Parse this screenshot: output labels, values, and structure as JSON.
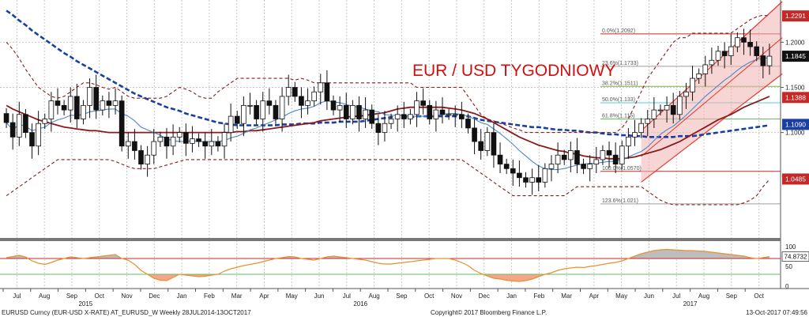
{
  "chart_data": {
    "type": "candlestick",
    "title": "EUR / USD TYGODNIOWY",
    "title_color": "#d01010",
    "ylim": [
      0.985,
      1.245
    ],
    "y_ticks": [
      "1.2000",
      "1.1500",
      "1.1000"
    ],
    "y_tick_values": [
      1.2,
      1.15,
      1.1
    ],
    "price_tags": [
      {
        "label": "1.2291",
        "value": 1.2291,
        "color": "#c62828"
      },
      {
        "label": "1.1845",
        "value": 1.1845,
        "color": "#111111"
      },
      {
        "label": "1.1388",
        "value": 1.1388,
        "color": "#c62828"
      },
      {
        "label": "1.1090",
        "value": 1.109,
        "color": "#1a3fa0"
      },
      {
        "label": "1.0485",
        "value": 1.0485,
        "color": "#c62828"
      }
    ],
    "fib_levels": [
      {
        "label": "0.0%(1.2092)",
        "value": 1.2092,
        "color": "#c62828"
      },
      {
        "label": "23.6%(1.1733)",
        "value": 1.1733,
        "color": "#9e9e9e"
      },
      {
        "label": "38.2%(1.1511)",
        "value": 1.1511,
        "color": "#7cb342"
      },
      {
        "label": "50.0%(1.133)",
        "value": 1.133,
        "color": "#4dd0e1"
      },
      {
        "label": "61.8%(1.115)",
        "value": 1.115,
        "color": "#66bb6a"
      },
      {
        "label": "100.0%(1.0570)",
        "value": 1.057,
        "color": "#c62828"
      },
      {
        "label": "123.6%(1.021)",
        "value": 1.021,
        "color": "#9e9e9e"
      }
    ],
    "x_tick_labels": [
      "Jul",
      "Aug",
      "Sep",
      "Oct",
      "Nov",
      "Dec",
      "Jan",
      "Feb",
      "Mar",
      "Apr",
      "May",
      "Jun",
      "Jul",
      "Aug",
      "Sep",
      "Oct",
      "Nov",
      "Dec",
      "Jan",
      "Feb",
      "Mar",
      "Apr",
      "May",
      "Jun",
      "Jul",
      "Aug",
      "Sep",
      "Oct"
    ],
    "year_labels": [
      {
        "label": "2015",
        "month_index": 2.5
      },
      {
        "label": "2016",
        "month_index": 12.5
      },
      {
        "label": "2017",
        "month_index": 24.5
      }
    ],
    "closes": [
      1.111,
      1.095,
      1.12,
      1.1,
      1.085,
      1.11,
      1.115,
      1.135,
      1.13,
      1.125,
      1.14,
      1.115,
      1.13,
      1.15,
      1.125,
      1.135,
      1.13,
      1.135,
      1.085,
      1.09,
      1.08,
      1.065,
      1.075,
      1.09,
      1.095,
      1.085,
      1.095,
      1.1,
      1.088,
      1.093,
      1.09,
      1.085,
      1.09,
      1.085,
      1.1,
      1.118,
      1.11,
      1.13,
      1.13,
      1.115,
      1.135,
      1.13,
      1.115,
      1.14,
      1.15,
      1.14,
      1.13,
      1.135,
      1.145,
      1.155,
      1.135,
      1.125,
      1.13,
      1.115,
      1.13,
      1.115,
      1.125,
      1.11,
      1.1,
      1.11,
      1.115,
      1.12,
      1.115,
      1.12,
      1.135,
      1.13,
      1.115,
      1.125,
      1.12,
      1.12,
      1.12,
      1.115,
      1.105,
      1.09,
      1.08,
      1.1,
      1.075,
      1.065,
      1.06,
      1.055,
      1.05,
      1.045,
      1.05,
      1.045,
      1.06,
      1.065,
      1.075,
      1.07,
      1.08,
      1.065,
      1.06,
      1.065,
      1.07,
      1.08,
      1.075,
      1.065,
      1.085,
      1.095,
      1.1,
      1.11,
      1.115,
      1.125,
      1.125,
      1.13,
      1.12,
      1.14,
      1.145,
      1.16,
      1.165,
      1.175,
      1.18,
      1.19,
      1.185,
      1.195,
      1.205,
      1.2,
      1.195,
      1.185,
      1.174,
      1.1845
    ],
    "series": [
      {
        "name": "SMA 200",
        "color": "#1a3fa0",
        "style": "dashed",
        "values": [
          1.235,
          1.23,
          1.224,
          1.219,
          1.213,
          1.208,
          1.203,
          1.198,
          1.193,
          1.188,
          1.184,
          1.179,
          1.175,
          1.171,
          1.167,
          1.163,
          1.159,
          1.155,
          1.151,
          1.147,
          1.143,
          1.14,
          1.137,
          1.134,
          1.131,
          1.128,
          1.126,
          1.124,
          1.121,
          1.119,
          1.117,
          1.115,
          1.113,
          1.111,
          1.11,
          1.109,
          1.108,
          1.108,
          1.108,
          1.108,
          1.108,
          1.108,
          1.108,
          1.109,
          1.109,
          1.109,
          1.11,
          1.11,
          1.11,
          1.111,
          1.111,
          1.111,
          1.112,
          1.112,
          1.112,
          1.112,
          1.113,
          1.114,
          1.115,
          1.116,
          1.117,
          1.117,
          1.117,
          1.117,
          1.118,
          1.118,
          1.118,
          1.118,
          1.118,
          1.118,
          1.118,
          1.118,
          1.118,
          1.116,
          1.114,
          1.113,
          1.112,
          1.111,
          1.11,
          1.109,
          1.108,
          1.107,
          1.106,
          1.106,
          1.105,
          1.104,
          1.103,
          1.103,
          1.102,
          1.102,
          1.101,
          1.1,
          1.1,
          1.099,
          1.098,
          1.098,
          1.097,
          1.097,
          1.096,
          1.096,
          1.095,
          1.095,
          1.095,
          1.095,
          1.095,
          1.096,
          1.096,
          1.096,
          1.097,
          1.098,
          1.099,
          1.1,
          1.101,
          1.102,
          1.103,
          1.104,
          1.105,
          1.106,
          1.107,
          1.108
        ]
      },
      {
        "name": "SMA 55",
        "color": "#8b1a1a",
        "style": "solid",
        "values": [
          1.13,
          1.126,
          1.123,
          1.12,
          1.117,
          1.114,
          1.112,
          1.11,
          1.108,
          1.106,
          1.105,
          1.104,
          1.103,
          1.102,
          1.102,
          1.101,
          1.1,
          1.1,
          1.1,
          1.1,
          1.1,
          1.1,
          1.1,
          1.1,
          1.1,
          1.1,
          1.1,
          1.1,
          1.1,
          1.1,
          1.1,
          1.1,
          1.1,
          1.1,
          1.1,
          1.1,
          1.101,
          1.101,
          1.102,
          1.102,
          1.103,
          1.104,
          1.105,
          1.106,
          1.107,
          1.108,
          1.109,
          1.11,
          1.111,
          1.113,
          1.114,
          1.115,
          1.116,
          1.117,
          1.118,
          1.118,
          1.119,
          1.12,
          1.121,
          1.122,
          1.124,
          1.126,
          1.127,
          1.128,
          1.128,
          1.128,
          1.128,
          1.128,
          1.128,
          1.127,
          1.126,
          1.125,
          1.123,
          1.121,
          1.118,
          1.115,
          1.111,
          1.107,
          1.103,
          1.099,
          1.095,
          1.092,
          1.089,
          1.086,
          1.084,
          1.082,
          1.08,
          1.079,
          1.077,
          1.076,
          1.074,
          1.073,
          1.072,
          1.072,
          1.071,
          1.071,
          1.071,
          1.072,
          1.073,
          1.075,
          1.077,
          1.079,
          1.081,
          1.084,
          1.087,
          1.09,
          1.094,
          1.098,
          1.102,
          1.106,
          1.11,
          1.114,
          1.117,
          1.12,
          1.124,
          1.128,
          1.131,
          1.134,
          1.137,
          1.14
        ]
      },
      {
        "name": "SMA 10",
        "color": "#4f87c4",
        "style": "solid",
        "values": [
          1.111,
          1.103,
          1.109,
          1.107,
          1.102,
          1.104,
          1.106,
          1.111,
          1.114,
          1.116,
          1.119,
          1.119,
          1.12,
          1.123,
          1.124,
          1.125,
          1.126,
          1.126,
          1.121,
          1.118,
          1.113,
          1.106,
          1.103,
          1.1,
          1.097,
          1.093,
          1.091,
          1.09,
          1.09,
          1.091,
          1.09,
          1.09,
          1.09,
          1.09,
          1.091,
          1.094,
          1.096,
          1.099,
          1.103,
          1.105,
          1.108,
          1.111,
          1.114,
          1.117,
          1.121,
          1.124,
          1.126,
          1.127,
          1.129,
          1.133,
          1.135,
          1.134,
          1.133,
          1.131,
          1.129,
          1.128,
          1.126,
          1.124,
          1.123,
          1.12,
          1.119,
          1.119,
          1.119,
          1.118,
          1.118,
          1.118,
          1.118,
          1.119,
          1.12,
          1.121,
          1.121,
          1.12,
          1.118,
          1.115,
          1.111,
          1.109,
          1.104,
          1.099,
          1.093,
          1.087,
          1.08,
          1.074,
          1.068,
          1.063,
          1.06,
          1.059,
          1.059,
          1.06,
          1.062,
          1.064,
          1.065,
          1.066,
          1.066,
          1.067,
          1.068,
          1.068,
          1.07,
          1.073,
          1.076,
          1.079,
          1.084,
          1.091,
          1.098,
          1.103,
          1.107,
          1.113,
          1.119,
          1.126,
          1.133,
          1.14,
          1.146,
          1.152,
          1.158,
          1.163,
          1.169,
          1.174,
          1.178,
          1.181,
          1.182,
          1.183
        ]
      },
      {
        "name": "Upper band",
        "color": "#8b1a1a",
        "style": "dashed",
        "values": [
          1.2,
          1.192,
          1.182,
          1.17,
          1.16,
          1.15,
          1.145,
          1.14,
          1.138,
          1.14,
          1.145,
          1.15,
          1.155,
          1.155,
          1.153,
          1.15,
          1.148,
          1.15,
          1.145,
          1.14,
          1.138,
          1.138,
          1.138,
          1.138,
          1.138,
          1.14,
          1.145,
          1.15,
          1.148,
          1.145,
          1.14,
          1.138,
          1.138,
          1.145,
          1.15,
          1.155,
          1.16,
          1.16,
          1.16,
          1.16,
          1.16,
          1.16,
          1.16,
          1.16,
          1.16,
          1.158,
          1.16,
          1.158,
          1.155,
          1.155,
          1.155,
          1.155,
          1.155,
          1.155,
          1.155,
          1.155,
          1.155,
          1.155,
          1.155,
          1.155,
          1.155,
          1.155,
          1.155,
          1.155,
          1.15,
          1.15,
          1.15,
          1.15,
          1.15,
          1.15,
          1.15,
          1.15,
          1.14,
          1.13,
          1.12,
          1.115,
          1.113,
          1.11,
          1.108,
          1.105,
          1.103,
          1.1,
          1.1,
          1.1,
          1.1,
          1.1,
          1.1,
          1.1,
          1.1,
          1.1,
          1.1,
          1.1,
          1.1,
          1.1,
          1.1,
          1.1,
          1.105,
          1.115,
          1.13,
          1.145,
          1.16,
          1.17,
          1.18,
          1.19,
          1.2,
          1.205,
          1.205,
          1.21,
          1.21,
          1.21,
          1.21,
          1.21,
          1.21,
          1.21,
          1.215,
          1.22,
          1.225,
          1.228,
          1.23,
          1.229
        ]
      },
      {
        "name": "Lower band",
        "color": "#8b1a1a",
        "style": "dashed",
        "values": [
          1.03,
          1.035,
          1.04,
          1.045,
          1.05,
          1.055,
          1.06,
          1.065,
          1.07,
          1.07,
          1.07,
          1.07,
          1.07,
          1.07,
          1.07,
          1.07,
          1.07,
          1.068,
          1.065,
          1.062,
          1.06,
          1.06,
          1.06,
          1.06,
          1.062,
          1.064,
          1.066,
          1.068,
          1.07,
          1.07,
          1.07,
          1.07,
          1.07,
          1.07,
          1.07,
          1.07,
          1.07,
          1.07,
          1.07,
          1.07,
          1.07,
          1.07,
          1.07,
          1.07,
          1.07,
          1.07,
          1.07,
          1.07,
          1.07,
          1.07,
          1.07,
          1.07,
          1.07,
          1.07,
          1.07,
          1.07,
          1.07,
          1.07,
          1.07,
          1.07,
          1.07,
          1.07,
          1.07,
          1.07,
          1.07,
          1.07,
          1.07,
          1.07,
          1.07,
          1.07,
          1.07,
          1.07,
          1.065,
          1.06,
          1.055,
          1.05,
          1.045,
          1.04,
          1.035,
          1.03,
          1.03,
          1.03,
          1.03,
          1.03,
          1.03,
          1.03,
          1.03,
          1.03,
          1.035,
          1.04,
          1.04,
          1.04,
          1.04,
          1.04,
          1.04,
          1.04,
          1.04,
          1.04,
          1.04,
          1.04,
          1.035,
          1.03,
          1.025,
          1.022,
          1.02,
          1.02,
          1.02,
          1.02,
          1.02,
          1.02,
          1.02,
          1.02,
          1.02,
          1.02,
          1.02,
          1.022,
          1.025,
          1.03,
          1.04,
          1.048
        ]
      }
    ],
    "channel": {
      "color": "#e53935",
      "fill": "#f3b2b2",
      "start": [
        99,
        1.045
      ],
      "end": [
        121,
        1.165
      ],
      "start_top": [
        99,
        1.102
      ],
      "end_top": [
        121,
        1.245
      ]
    },
    "oscillator": {
      "ylim": [
        0,
        100
      ],
      "y_ticks": [
        "100",
        "50",
        "0"
      ],
      "current_label": "74.8732",
      "levels": [
        {
          "value": 70,
          "color": "#c62828"
        },
        {
          "value": 30,
          "color": "#66bb6a"
        }
      ],
      "values": [
        72,
        75,
        78,
        74,
        64,
        58,
        55,
        60,
        66,
        70,
        74,
        72,
        70,
        72,
        74,
        76,
        78,
        80,
        70,
        66,
        55,
        40,
        30,
        20,
        15,
        14,
        22,
        30,
        28,
        26,
        24,
        25,
        28,
        30,
        38,
        44,
        48,
        52,
        55,
        58,
        62,
        66,
        70,
        72,
        75,
        74,
        70,
        68,
        66,
        70,
        74,
        76,
        74,
        72,
        70,
        68,
        66,
        62,
        58,
        56,
        56,
        58,
        60,
        62,
        64,
        66,
        68,
        70,
        70,
        70,
        66,
        60,
        52,
        40,
        32,
        26,
        20,
        18,
        15,
        13,
        12,
        14,
        18,
        24,
        30,
        34,
        40,
        44,
        46,
        48,
        47,
        50,
        52,
        55,
        58,
        60,
        64,
        70,
        76,
        82,
        86,
        90,
        92,
        93,
        92,
        91,
        90,
        90,
        89,
        88,
        86,
        84,
        82,
        80,
        78,
        76,
        72,
        70,
        72,
        74.87
      ]
    },
    "footer": {
      "left": "EURUSD Curncy (EUR-USD X-RATE) AT_EURUSD_W  Weekly 28JUL2014-13OCT2017",
      "center": "Copyright© 2017 Bloomberg Finance L.P.",
      "right": "13-Oct-2017 07:49:56"
    }
  }
}
